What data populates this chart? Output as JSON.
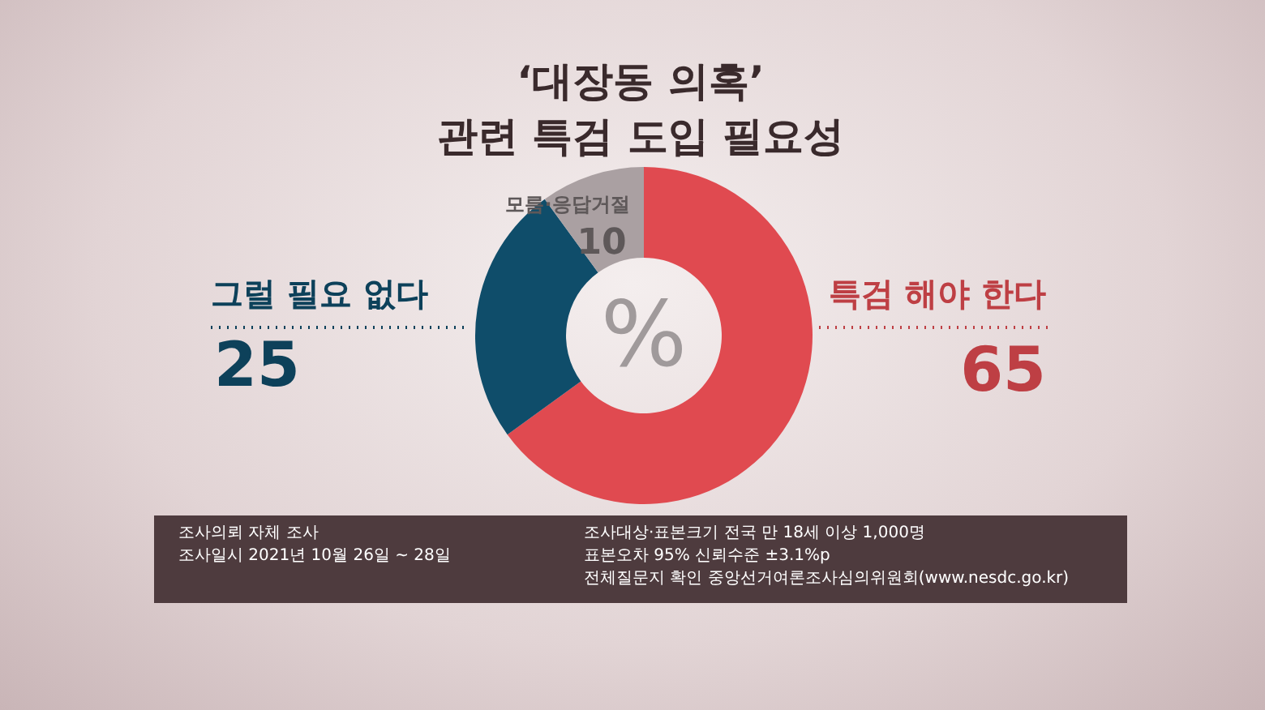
{
  "chart_data": {
    "type": "donut",
    "title": "‘대장동 의혹’\n관련 특검 도입 필요성",
    "categories": [
      "특검 해야 한다",
      "그럴 필요 없다",
      "모름·응답거절"
    ],
    "values": [
      65,
      25,
      10
    ],
    "colors": [
      "#e04a50",
      "#0f4d6a",
      "#aaa0a2"
    ],
    "data_labels": true,
    "annotations": [
      "%",
      "조사의뢰 자체 조사",
      "조사일시 2021년 10월 26일 ~ 28일",
      "조사대상·표본크기 전국 만 18세 이상 1,000명",
      "표본오차 95% 신뢰수준 ±3.1%p",
      "전체질문지 확인 중앙선거여론조사심의위원회(www.nesdc.go.kr)"
    ]
  }
}
